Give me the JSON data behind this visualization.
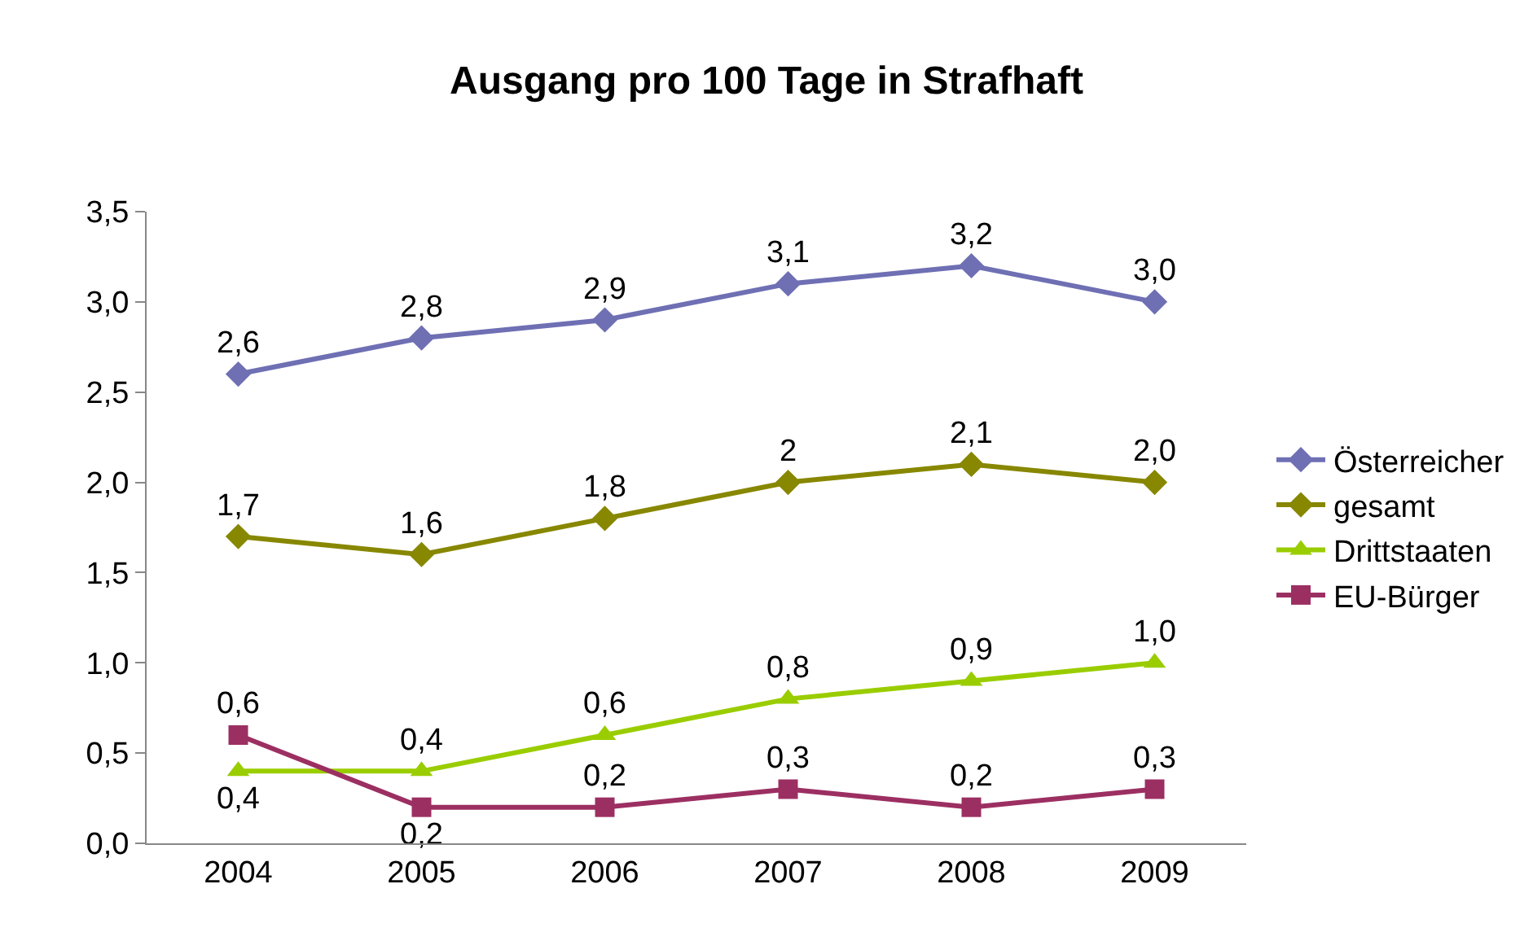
{
  "chart_data": {
    "type": "line",
    "title": "Ausgang pro 100 Tage in Strafhaft",
    "categories": [
      "2004",
      "2005",
      "2006",
      "2007",
      "2008",
      "2009"
    ],
    "series": [
      {
        "name": "Österreicher",
        "color": "#6f6fb4",
        "marker": "diamond",
        "values": [
          2.6,
          2.8,
          2.9,
          3.1,
          3.2,
          3.0
        ],
        "value_labels": [
          "2,6",
          "2,8",
          "2,9",
          "3,1",
          "3,2",
          "3,0"
        ]
      },
      {
        "name": "gesamt",
        "color": "#878700",
        "marker": "diamond",
        "values": [
          1.7,
          1.6,
          1.8,
          2.0,
          2.1,
          2.0
        ],
        "value_labels": [
          "1,7",
          "1,6",
          "1,8",
          "2",
          "2,1",
          "2,0"
        ]
      },
      {
        "name": "Drittstaaten",
        "color": "#9acd00",
        "marker": "triangle",
        "values": [
          0.4,
          0.4,
          0.6,
          0.8,
          0.9,
          1.0
        ],
        "value_labels": [
          "0,4",
          "0,4",
          "0,6",
          "0,8",
          "0,9",
          "1,0"
        ]
      },
      {
        "name": "EU-Bürger",
        "color": "#9c2f62",
        "marker": "square",
        "values": [
          0.6,
          0.2,
          0.2,
          0.3,
          0.2,
          0.3
        ],
        "value_labels": [
          "0,6",
          "0,2",
          "0,2",
          "0,3",
          "0,2",
          "0,3"
        ]
      }
    ],
    "ylim": [
      0,
      3.5
    ],
    "yticks": [
      {
        "value": 0,
        "label": "0,0"
      },
      {
        "value": 0.5,
        "label": "0,5"
      },
      {
        "value": 1,
        "label": "1,0"
      },
      {
        "value": 1.5,
        "label": "1,5"
      },
      {
        "value": 2,
        "label": "2,0"
      },
      {
        "value": 2.5,
        "label": "2,5"
      },
      {
        "value": 3,
        "label": "3,0"
      },
      {
        "value": 3.5,
        "label": "3,5"
      }
    ],
    "legend": "right",
    "line_style": "solid"
  }
}
